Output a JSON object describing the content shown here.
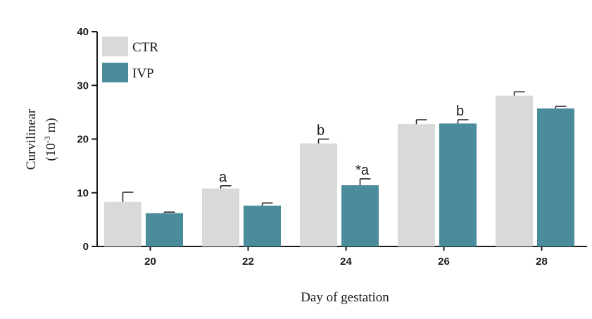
{
  "chart_data": {
    "type": "bar",
    "xlabel": "Day of gestation",
    "ylabel": "Curvilinear",
    "ylabel_unit_prefix": "(10",
    "ylabel_unit_exp": "-3",
    "ylabel_unit_suffix": " m)",
    "ylim": [
      0,
      40
    ],
    "yticks": [
      0,
      10,
      20,
      30,
      40
    ],
    "categories": [
      "20",
      "22",
      "24",
      "26",
      "28"
    ],
    "legend_position": "top-left",
    "series": [
      {
        "name": "CTR",
        "color": "#d9d9d9",
        "values": [
          8.3,
          10.8,
          19.2,
          22.8,
          28.1
        ],
        "errors": [
          1.8,
          0.5,
          0.8,
          0.8,
          0.7
        ],
        "annotations": [
          "",
          "a",
          "b",
          "",
          ""
        ]
      },
      {
        "name": "IVP",
        "color": "#4a8b9c",
        "values": [
          6.2,
          7.6,
          11.4,
          22.9,
          25.7
        ],
        "errors": [
          0.2,
          0.5,
          1.2,
          0.7,
          0.4
        ],
        "annotations": [
          "",
          "",
          "*a",
          "b",
          ""
        ]
      }
    ]
  }
}
